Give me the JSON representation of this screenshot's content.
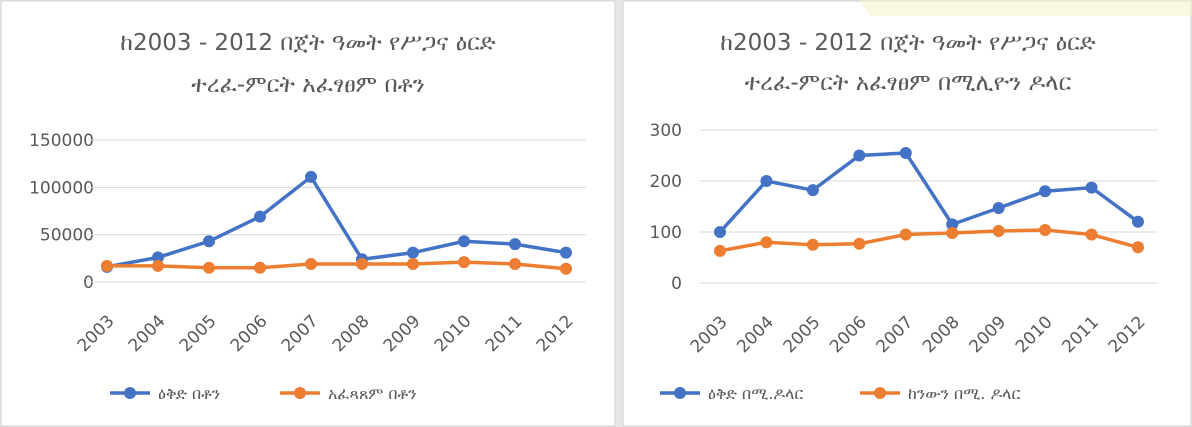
{
  "chart_data": [
    {
      "type": "line",
      "title": [
        "ከ2003 - 2012 በጀት ዓመት የሥጋና ዕርድ",
        "ተረፈ-ምርት አፈፃፀም በቶን"
      ],
      "categories": [
        "2003",
        "2004",
        "2005",
        "2006",
        "2007",
        "2008",
        "2009",
        "2010",
        "2011",
        "2012"
      ],
      "series": [
        {
          "name": "ዕቅድ በቶን",
          "color": "#4472c4",
          "values": [
            16000,
            26000,
            43000,
            69000,
            111000,
            24000,
            31000,
            43000,
            40000,
            31000
          ]
        },
        {
          "name": "አፈጻጸም በቶን",
          "color": "#ed7d31",
          "values": [
            17000,
            17000,
            15000,
            15000,
            19000,
            19000,
            19000,
            21000,
            19000,
            14000
          ]
        }
      ],
      "ylim": [
        0,
        150000
      ],
      "yticks": [
        0,
        50000,
        100000,
        150000
      ],
      "grid": true,
      "legend": "bottom"
    },
    {
      "type": "line",
      "title": [
        "ከ2003 - 2012 በጀት ዓመት የሥጋና ዕርድ",
        "ተረፈ-ምርት አፈፃፀም በሚሊዮን ዶላር"
      ],
      "categories": [
        "2003",
        "2004",
        "2005",
        "2006",
        "2007",
        "2008",
        "2009",
        "2010",
        "2011",
        "2012"
      ],
      "series": [
        {
          "name": "ዕቅድ በሚ.ዶላር",
          "color": "#4472c4",
          "values": [
            100,
            200,
            182,
            250,
            255,
            115,
            147,
            180,
            187,
            120
          ]
        },
        {
          "name": "ከንውን በሚ. ዶላር",
          "color": "#ed7d31",
          "values": [
            63,
            80,
            75,
            77,
            95,
            98,
            102,
            104,
            95,
            70
          ]
        }
      ],
      "ylim": [
        0,
        300
      ],
      "yticks": [
        0,
        100,
        200,
        300
      ],
      "grid": true,
      "legend": "bottom"
    }
  ]
}
